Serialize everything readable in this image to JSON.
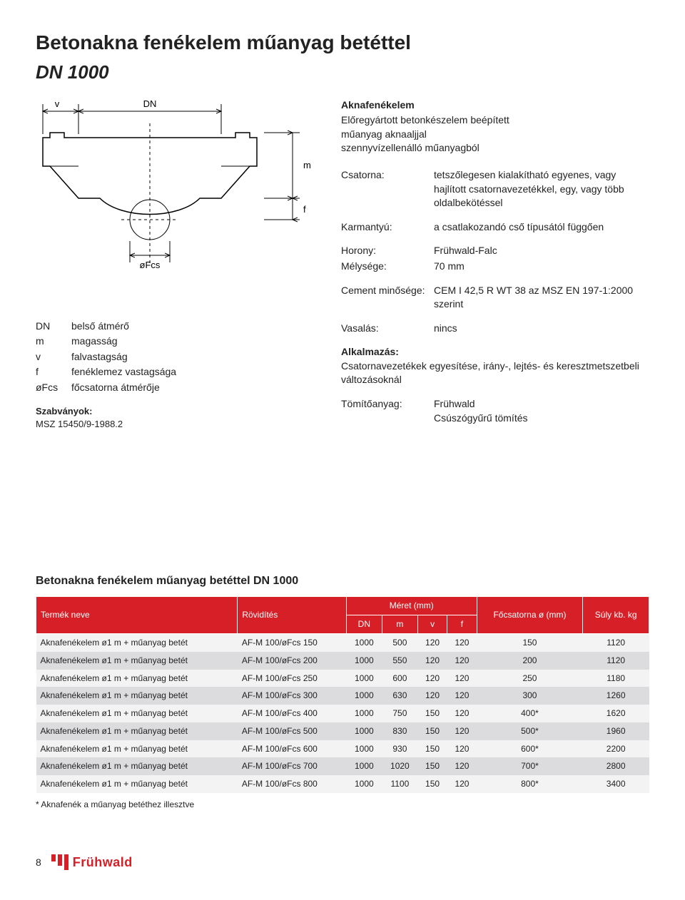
{
  "title": "Betonakna fenékelem műanyag betéttel",
  "subtitle": "DN 1000",
  "diagram": {
    "labels": {
      "v": "v",
      "DN": "DN",
      "m": "m",
      "f": "f",
      "oFcs": "øFcs"
    },
    "stroke": "#000000",
    "dash": "3,3"
  },
  "legend": [
    {
      "key": "DN",
      "desc": "belső átmérő"
    },
    {
      "key": "m",
      "desc": "magasság"
    },
    {
      "key": "v",
      "desc": "falvastagság"
    },
    {
      "key": "f",
      "desc": "fenéklemez vastagsága"
    },
    {
      "key": "øFcs",
      "desc": "főcsatorna átmérője"
    }
  ],
  "standards_label": "Szabványok:",
  "standards_value": "MSZ 15450/9-1988.2",
  "spec": {
    "heading": "Aknafenékelem",
    "lines": [
      "Előregyártott betonkészelem beépített",
      "műanyag aknaaljjal",
      "szennyvízellenálló műanyagból"
    ],
    "csatorna_label": "Csatorna:",
    "csatorna_value": "tetszőlegesen kialakítható egyenes, vagy hajlított csatornavezetékkel, egy, vagy több oldalbekötéssel",
    "karmantyu_label": "Karmantyú:",
    "karmantyu_value": "a csatlakozandó cső típusától függően",
    "horony_label": "Horony:",
    "horony_value": "Frühwald-Falc",
    "melyseg_label": "Mélysége:",
    "melyseg_value": "70 mm",
    "cement_label": "Cement minősége:",
    "cement_value": "CEM I 42,5 R WT 38 az MSZ EN 197-1:2000 szerint",
    "vasalas_label": "Vasalás:",
    "vasalas_value": "nincs",
    "alkalmazas_label": "Alkalmazás:",
    "alkalmazas_value": "Csatornavezetékek egyesítése, irány-, lejtés- és keresztmetszetbeli változásoknál",
    "tomito_label": "Tömítőanyag:",
    "tomito_value1": "Frühwald",
    "tomito_value2": "Csúszógyűrű tömítés"
  },
  "table": {
    "title": "Betonakna fenékelem műanyag betéttel DN 1000",
    "header": {
      "name": "Termék neve",
      "short": "Rövidítés",
      "dims": "Méret (mm)",
      "DN": "DN",
      "m": "m",
      "v": "v",
      "f": "f",
      "focsat": "Főcsatorna ø (mm)",
      "weight": "Súly kb. kg"
    },
    "rows": [
      {
        "name": "Aknafenékelem ø1 m + műanyag betét",
        "short": "AF-M 100/øFcs 150",
        "DN": "1000",
        "m": "500",
        "v": "120",
        "f": "120",
        "fo": "150",
        "w": "1120"
      },
      {
        "name": "Aknafenékelem ø1 m + műanyag betét",
        "short": "AF-M 100/øFcs 200",
        "DN": "1000",
        "m": "550",
        "v": "120",
        "f": "120",
        "fo": "200",
        "w": "1120"
      },
      {
        "name": "Aknafenékelem ø1 m + műanyag betét",
        "short": "AF-M 100/øFcs 250",
        "DN": "1000",
        "m": "600",
        "v": "120",
        "f": "120",
        "fo": "250",
        "w": "1180"
      },
      {
        "name": "Aknafenékelem ø1 m + műanyag betét",
        "short": "AF-M 100/øFcs 300",
        "DN": "1000",
        "m": "630",
        "v": "120",
        "f": "120",
        "fo": "300",
        "w": "1260"
      },
      {
        "name": "Aknafenékelem ø1 m + műanyag betét",
        "short": "AF-M 100/øFcs 400",
        "DN": "1000",
        "m": "750",
        "v": "150",
        "f": "120",
        "fo": "400*",
        "w": "1620"
      },
      {
        "name": "Aknafenékelem ø1 m + műanyag betét",
        "short": "AF-M 100/øFcs 500",
        "DN": "1000",
        "m": "830",
        "v": "150",
        "f": "120",
        "fo": "500*",
        "w": "1960"
      },
      {
        "name": "Aknafenékelem ø1 m + műanyag betét",
        "short": "AF-M 100/øFcs 600",
        "DN": "1000",
        "m": "930",
        "v": "150",
        "f": "120",
        "fo": "600*",
        "w": "2200"
      },
      {
        "name": "Aknafenékelem ø1 m + műanyag betét",
        "short": "AF-M 100/øFcs 700",
        "DN": "1000",
        "m": "1020",
        "v": "150",
        "f": "120",
        "fo": "700*",
        "w": "2800"
      },
      {
        "name": "Aknafenékelem ø1 m + műanyag betét",
        "short": "AF-M 100/øFcs 800",
        "DN": "1000",
        "m": "1100",
        "v": "150",
        "f": "120",
        "fo": "800*",
        "w": "3400"
      }
    ],
    "footnote": "* Aknafenék a műanyag betéthez illesztve",
    "header_bg": "#d61f26",
    "header_fg": "#ffffff",
    "row_bg_light": "#f3f3f4",
    "row_bg_dark": "#dcdcde"
  },
  "footer": {
    "page": "8",
    "logo_text": "Frühwald",
    "logo_color": "#d61f26"
  }
}
